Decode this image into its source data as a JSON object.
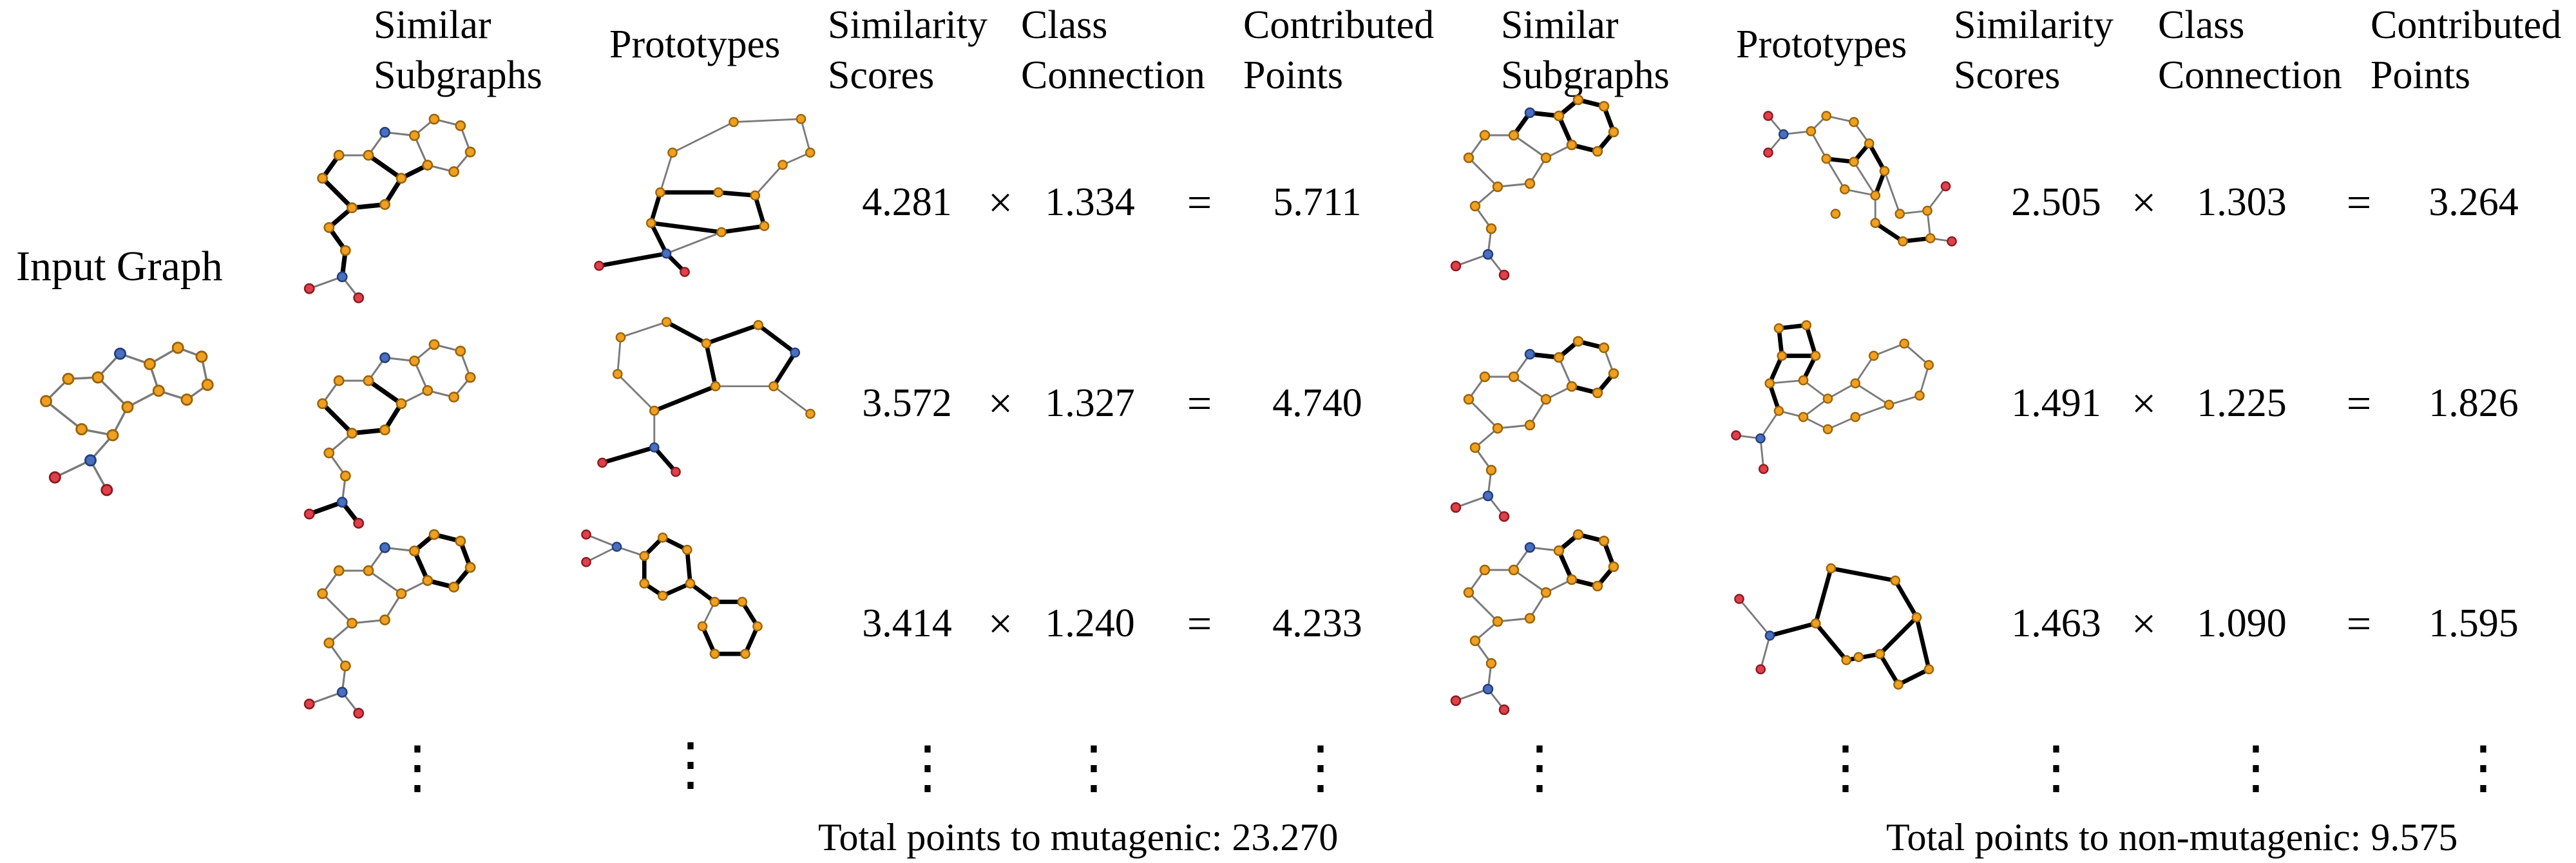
{
  "headers": {
    "left": {
      "similar_subgraphs": [
        "Similar",
        "Subgraphs"
      ],
      "prototypes": "Prototypes",
      "similarity_scores": [
        "Similarity",
        "Scores"
      ],
      "class_connection": [
        "Class",
        "Connection"
      ],
      "contributed_points": [
        "Contributed",
        "Points"
      ]
    },
    "right": {
      "similar_subgraphs": [
        "Similar",
        "Subgraphs"
      ],
      "prototypes": "Prototypes",
      "similarity_scores": [
        "Similarity",
        "Scores"
      ],
      "class_connection": [
        "Class",
        "Connection"
      ],
      "contributed_points": [
        "Contributed",
        "Points"
      ]
    }
  },
  "input_graph_label": "Input Graph",
  "operators": {
    "times": "×",
    "equals": "="
  },
  "ellipsis": "⋮",
  "rows": {
    "mutagenic": [
      {
        "similarity": "4.281",
        "connection": "1.334",
        "points": "5.711"
      },
      {
        "similarity": "3.572",
        "connection": "1.327",
        "points": "4.740"
      },
      {
        "similarity": "3.414",
        "connection": "1.240",
        "points": "4.233"
      }
    ],
    "non_mutagenic": [
      {
        "similarity": "2.505",
        "connection": "1.303",
        "points": "3.264"
      },
      {
        "similarity": "1.491",
        "connection": "1.225",
        "points": "1.826"
      },
      {
        "similarity": "1.463",
        "connection": "1.090",
        "points": "1.595"
      }
    ]
  },
  "totals": {
    "mutagenic": "Total points to mutagenic: 23.270",
    "non_mutagenic": "Total points to non-mutagenic: 9.575"
  },
  "colors": {
    "carbon": "#f0a020",
    "nitrogen": "#4a6fbf",
    "oxygen": "#e0404a",
    "edge": "#7a7a7a",
    "highlight": "#000000"
  }
}
